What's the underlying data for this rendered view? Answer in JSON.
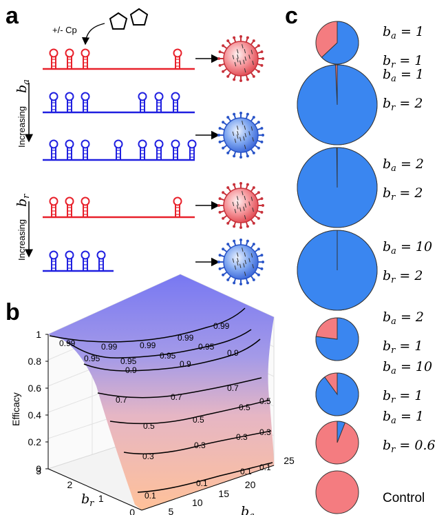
{
  "figure": {
    "panel_labels": [
      "a",
      "b",
      "c"
    ],
    "panel_a": {
      "cp_label": "+/- Cp",
      "arrow_label_ba": "Increasing",
      "arrow_label_br": "Increasing",
      "rows": [
        {
          "color": "red",
          "left_hairpins": 3,
          "right_hairpins": 1
        },
        {
          "color": "blue",
          "left_hairpins": 3,
          "right_hairpins": 3
        },
        {
          "color": "blue",
          "left_hairpins": 3,
          "right_hairpins": 5
        },
        {
          "color": "red",
          "left_hairpins": 3,
          "right_hairpins": 1
        },
        {
          "color": "blue",
          "left_hairpins": 4,
          "right_hairpins": 0
        }
      ],
      "virions": [
        "red",
        "blue",
        "red",
        "blue"
      ]
    },
    "colors": {
      "red": "#e8202a",
      "blue": "#1f1fe0",
      "pie_blue": "#3a86f0",
      "pie_red": "#f47c80"
    }
  },
  "chart_data": [
    {
      "type": "surface",
      "title": "",
      "zlabel": "Efficacy",
      "xlabel": "b_a",
      "ylabel": "b_r",
      "z_ticks": [
        "0",
        "0.2",
        "0.4",
        "0.6",
        "0.8",
        "1"
      ],
      "x_ticks": [
        "0",
        "5",
        "10",
        "15",
        "20",
        "25"
      ],
      "y_ticks": [
        "0",
        "1",
        "2",
        "3"
      ],
      "zlim": [
        0,
        1
      ],
      "xlim": [
        0,
        25
      ],
      "ylim": [
        0,
        3
      ],
      "contour_levels": [
        0.1,
        0.3,
        0.5,
        0.7,
        0.9,
        0.95,
        0.99
      ],
      "contour_labels": [
        {
          "text": "0.99"
        },
        {
          "text": "0.99"
        },
        {
          "text": "0.99"
        },
        {
          "text": "0.99"
        },
        {
          "text": "0.99"
        },
        {
          "text": "0.95"
        },
        {
          "text": "0.95"
        },
        {
          "text": "0.95"
        },
        {
          "text": "0.95"
        },
        {
          "text": "0.9"
        },
        {
          "text": "0.9"
        },
        {
          "text": "0.9"
        },
        {
          "text": "0.7"
        },
        {
          "text": "0.7"
        },
        {
          "text": "0.7"
        },
        {
          "text": "0.5"
        },
        {
          "text": "0.5"
        },
        {
          "text": "0.5"
        },
        {
          "text": "0.5"
        },
        {
          "text": "0.3"
        },
        {
          "text": "0.3"
        },
        {
          "text": "0.3"
        },
        {
          "text": "0.3"
        },
        {
          "text": "0.1"
        },
        {
          "text": "0.1"
        },
        {
          "text": "0.1"
        },
        {
          "text": "0.1"
        }
      ]
    },
    {
      "type": "pie",
      "title": "",
      "series": [
        {
          "ba": "1",
          "br": "1",
          "blue_fraction": 0.63
        },
        {
          "ba": "1",
          "br": "2",
          "blue_fraction": 0.993
        },
        {
          "ba": "2",
          "br": "2",
          "blue_fraction": 0.998
        },
        {
          "ba": "10",
          "br": "2",
          "blue_fraction": 0.999
        },
        {
          "ba": "2",
          "br": "1",
          "blue_fraction": 0.77
        },
        {
          "ba": "10",
          "br": "1",
          "blue_fraction": 0.9
        },
        {
          "ba": "1",
          "br": "0.6",
          "blue_fraction": 0.06
        },
        {
          "label": "Control",
          "blue_fraction": 0.0
        }
      ]
    }
  ]
}
